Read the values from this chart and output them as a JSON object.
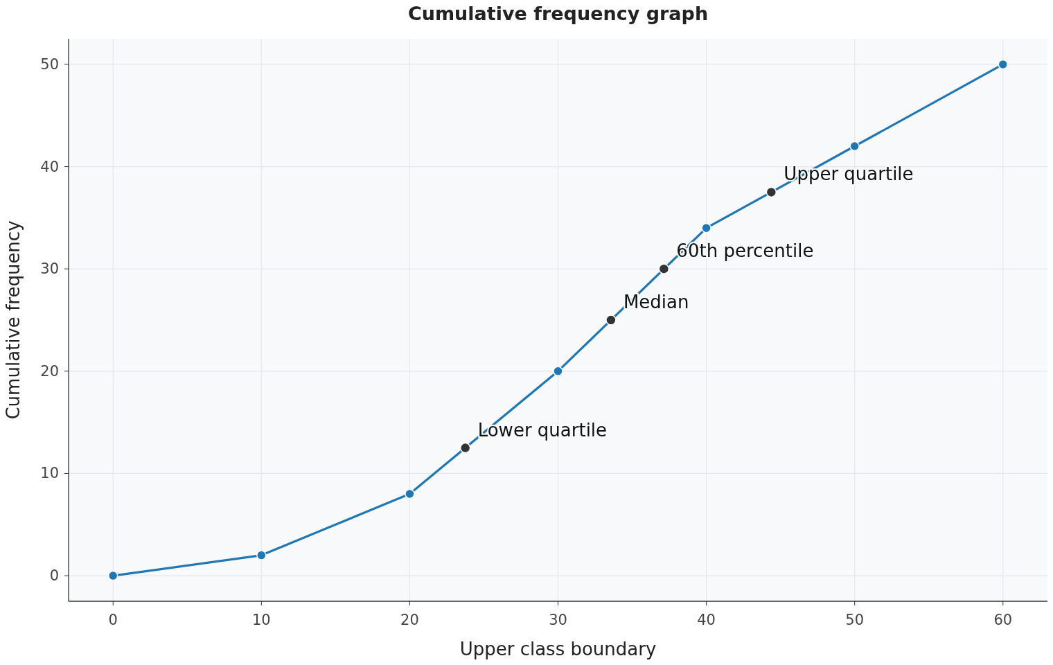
{
  "chart_data": {
    "type": "line",
    "title": "Cumulative frequency graph",
    "xlabel": "Upper class boundary",
    "ylabel": "Cumulative frequency",
    "x": [
      0,
      10,
      20,
      30,
      40,
      50,
      60
    ],
    "series": [
      {
        "color": "#1f77b4",
        "values": [
          0,
          2,
          8,
          20,
          34,
          42,
          50
        ]
      },
      {
        "type": "scatter",
        "color": "#333333",
        "x": [
          23.75,
          33.57,
          37.14,
          44.38
        ],
        "values": [
          12.5,
          25,
          30,
          37.5
        ]
      }
    ],
    "annotations": [
      {
        "text": "Lower quartile",
        "x": 23.75,
        "y": 12.5
      },
      {
        "text": "Median",
        "x": 33.57,
        "y": 25
      },
      {
        "text": "60th percentile",
        "x": 37.14,
        "y": 30
      },
      {
        "text": "Upper quartile",
        "x": 44.38,
        "y": 37.5
      }
    ],
    "xlim": [
      -3,
      63
    ],
    "ylim": [
      -2.5,
      52.5
    ],
    "xticks": [
      0,
      10,
      20,
      30,
      40,
      50,
      60
    ],
    "yticks": [
      0,
      10,
      20,
      30,
      40,
      50
    ],
    "grid": true,
    "marker": "circle",
    "line_style": "solid"
  }
}
